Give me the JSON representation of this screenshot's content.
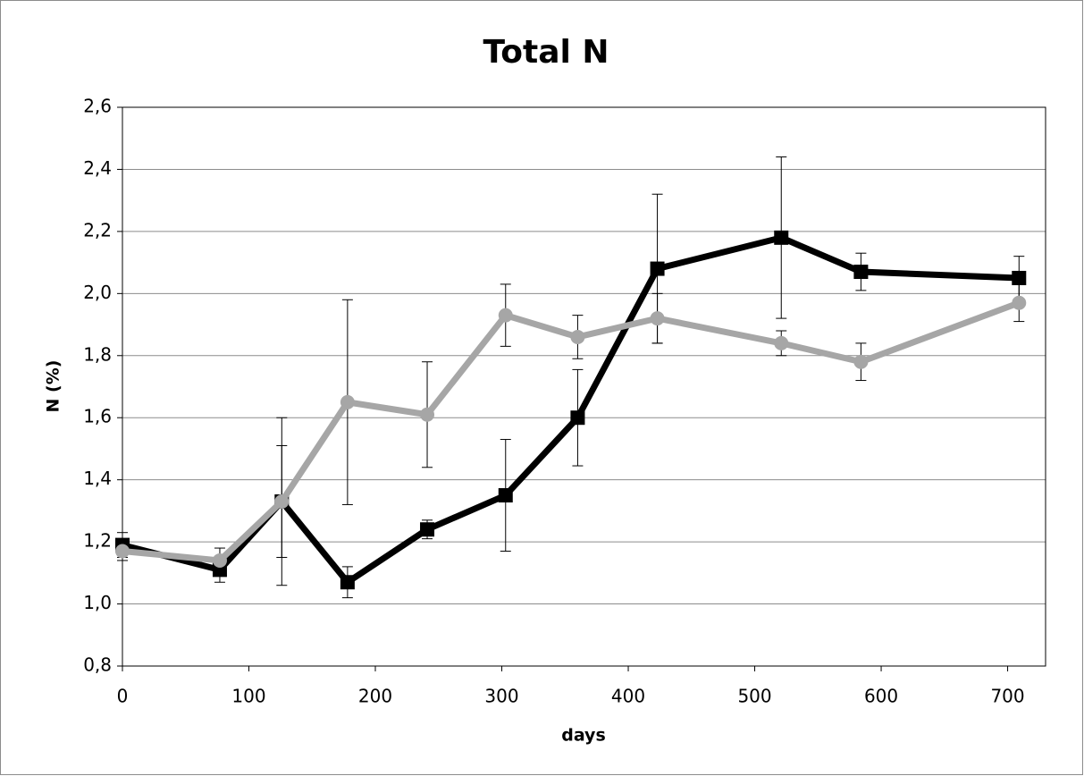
{
  "chart_data": {
    "type": "line",
    "title": "Total N",
    "x_label": "days",
    "y_label": "N (%)",
    "x": [
      0,
      77,
      126,
      178,
      241,
      303,
      360,
      423,
      521,
      584,
      709
    ],
    "series": [
      {
        "color": "#000000",
        "marker": "square",
        "values": [
          1.19,
          1.11,
          1.33,
          1.07,
          1.24,
          1.35,
          1.6,
          2.08,
          2.18,
          2.07,
          2.05
        ],
        "errors": [
          0.04,
          0.04,
          0.18,
          0.05,
          0.03,
          0.18,
          0.155,
          0.24,
          0.26,
          0.06,
          0.07
        ]
      },
      {
        "color": "#a6a6a6",
        "marker": "circle",
        "values": [
          1.17,
          1.14,
          1.33,
          1.65,
          1.61,
          1.93,
          1.86,
          1.92,
          1.84,
          1.78,
          1.97
        ],
        "errors": [
          0.03,
          0.04,
          0.27,
          0.33,
          0.17,
          0.1,
          0.07,
          0.08,
          0.04,
          0.06,
          0.06
        ]
      }
    ],
    "xlim": [
      0,
      730
    ],
    "xticks": [
      0,
      100,
      200,
      300,
      400,
      500,
      600,
      700
    ],
    "ylim": [
      0.8,
      2.6
    ],
    "yticks": [
      {
        "value": 0.8,
        "label": "0,8"
      },
      {
        "value": 1.0,
        "label": "1,0"
      },
      {
        "value": 1.2,
        "label": "1,2"
      },
      {
        "value": 1.4,
        "label": "1,4"
      },
      {
        "value": 1.6,
        "label": "1,6"
      },
      {
        "value": 1.8,
        "label": "1,8"
      },
      {
        "value": 2.0,
        "label": "2,0"
      },
      {
        "value": 2.2,
        "label": "2,2"
      },
      {
        "value": 2.4,
        "label": "2,4"
      },
      {
        "value": 2.6,
        "label": "2,6"
      }
    ],
    "grid": true
  }
}
